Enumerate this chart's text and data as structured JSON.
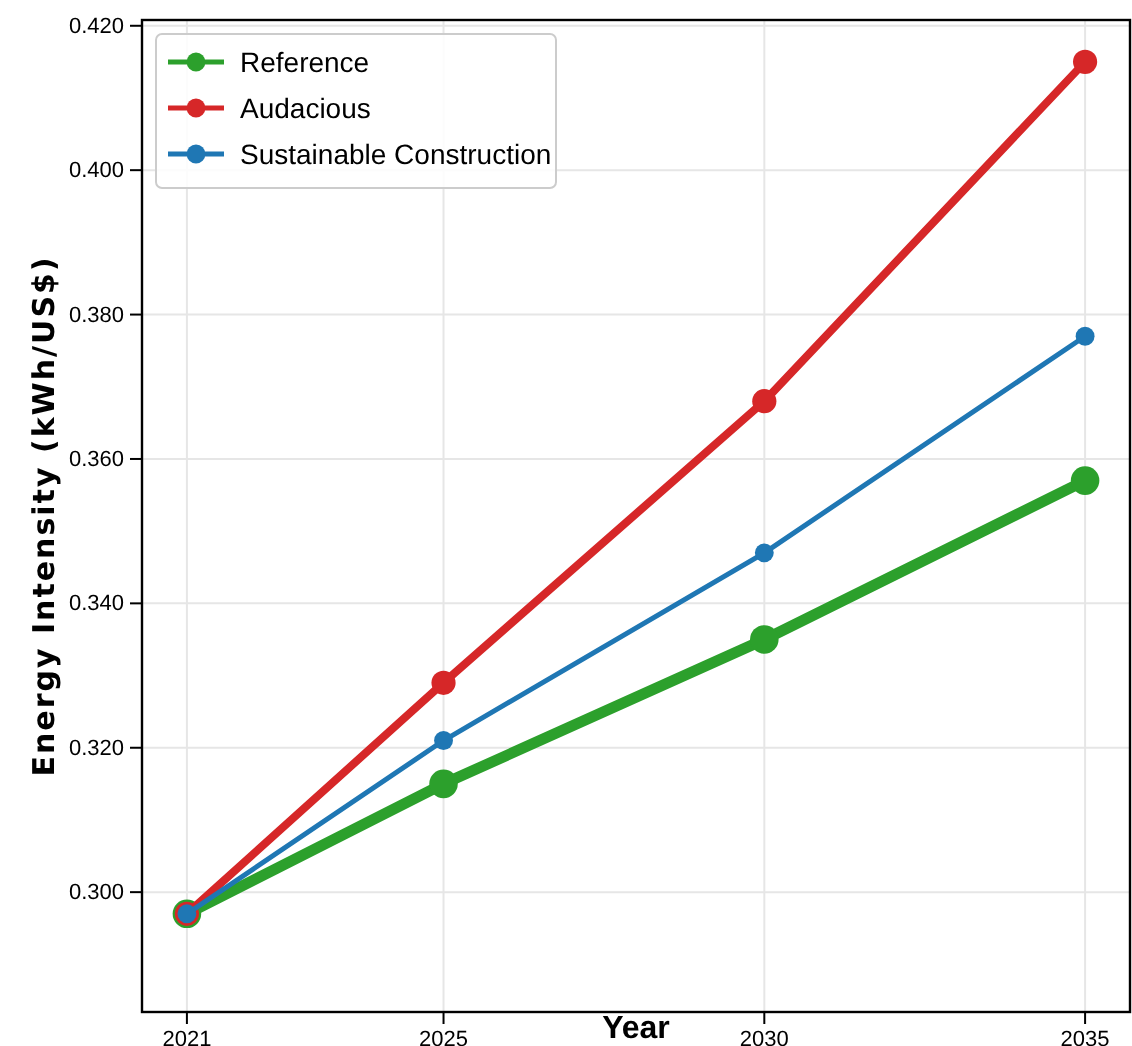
{
  "chart_data": {
    "type": "line",
    "xlabel": "Year",
    "ylabel": "Energy Intensity (kWh/US$)",
    "x": [
      2021,
      2025,
      2030,
      2035
    ],
    "series": [
      {
        "name": "Reference",
        "color": "#2ca02c",
        "values": [
          0.297,
          0.315,
          0.335,
          0.357
        ]
      },
      {
        "name": "Audacious",
        "color": "#d62728",
        "values": [
          0.297,
          0.329,
          0.368,
          0.415
        ]
      },
      {
        "name": "Sustainable Construction",
        "color": "#1f77b4",
        "values": [
          0.297,
          0.321,
          0.347,
          0.377
        ]
      }
    ],
    "xlim": [
      2020.3,
      2035.7
    ],
    "xticks": [
      2021,
      2025,
      2030,
      2035
    ],
    "ylim": [
      0.2834,
      0.4208
    ],
    "yticks": [
      {
        "value": 0.3,
        "label": "0.300"
      },
      {
        "value": 0.32,
        "label": "0.320"
      },
      {
        "value": 0.34,
        "label": "0.340"
      },
      {
        "value": 0.36,
        "label": "0.360"
      },
      {
        "value": 0.38,
        "label": "0.380"
      },
      {
        "value": 0.4,
        "label": "0.400"
      },
      {
        "value": 0.42,
        "label": "0.420"
      }
    ],
    "grid": true,
    "legend": "top left",
    "marker": "circle",
    "line_style": "solid"
  }
}
